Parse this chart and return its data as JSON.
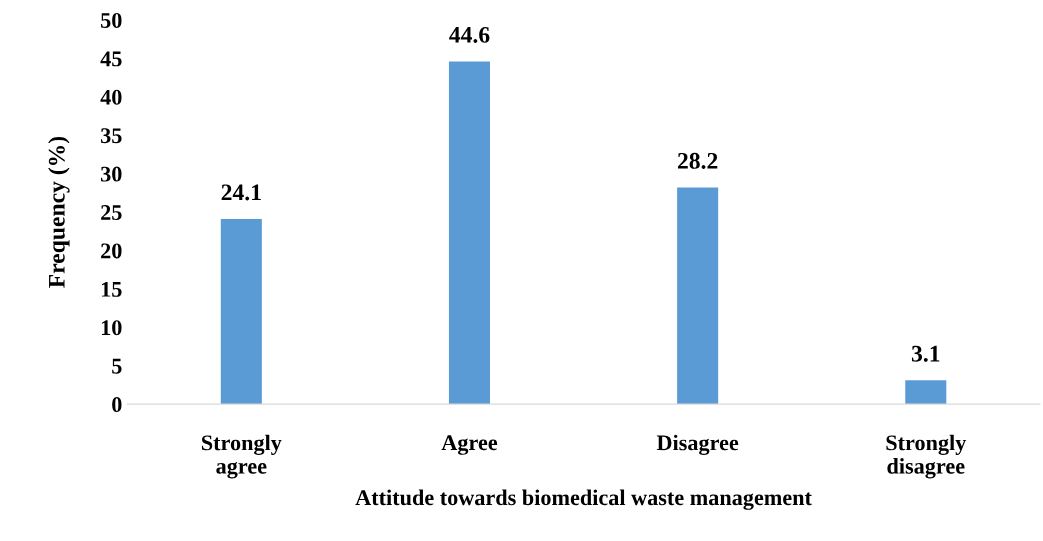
{
  "chart_data": {
    "type": "bar",
    "categories": [
      "Strongly\nagree",
      "Agree",
      "Disagree",
      "Strongly\ndisagree"
    ],
    "values": [
      24.1,
      44.6,
      28.2,
      3.1
    ],
    "color": "#5b9bd5",
    "xlabel": "Attitude towards biomedical waste management",
    "ylabel": "Frequency (%)",
    "ylim": [
      0,
      50
    ],
    "yticks": [
      0,
      5,
      10,
      15,
      20,
      25,
      30,
      35,
      40,
      45,
      50
    ],
    "data_labels": true
  }
}
